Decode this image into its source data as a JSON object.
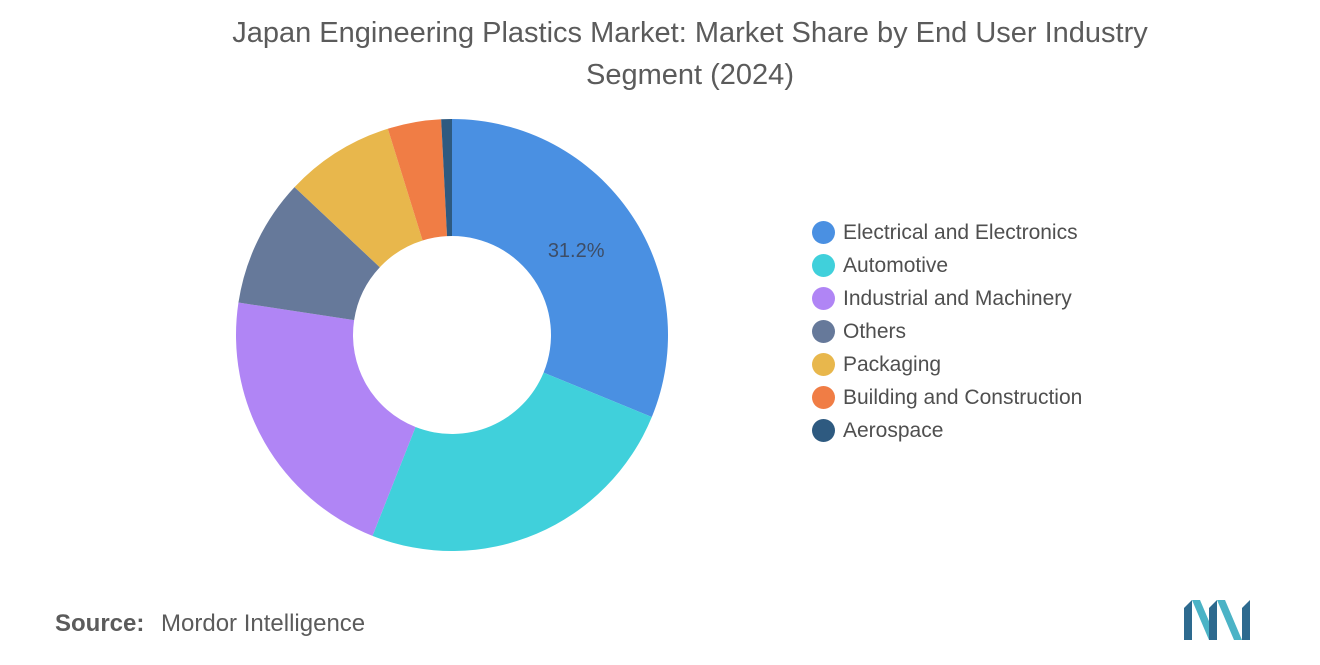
{
  "chart_data": {
    "type": "pie",
    "donut": true,
    "title": "Japan Engineering Plastics Market: Market Share by End User Industry Segment (2024)",
    "categories": [
      "Electrical and Electronics",
      "Automotive",
      "Industrial and Machinery",
      "Others",
      "Packaging",
      "Building and Construction",
      "Aerospace"
    ],
    "values": [
      31.2,
      24.8,
      21.4,
      9.6,
      8.2,
      4.0,
      0.8
    ],
    "colors": [
      "#4a90e2",
      "#40d0db",
      "#b085f5",
      "#66799a",
      "#e8b74c",
      "#f07d45",
      "#2e5a80"
    ],
    "data_labels": [
      "31.2%",
      null,
      null,
      null,
      null,
      null,
      null
    ],
    "legend_position": "right"
  },
  "source": {
    "label": "Source:",
    "value": "Mordor Intelligence"
  },
  "logo": {
    "icon": "mordor-intelligence-logo",
    "colors": [
      "#2d6a8f",
      "#4bb3c6"
    ]
  }
}
